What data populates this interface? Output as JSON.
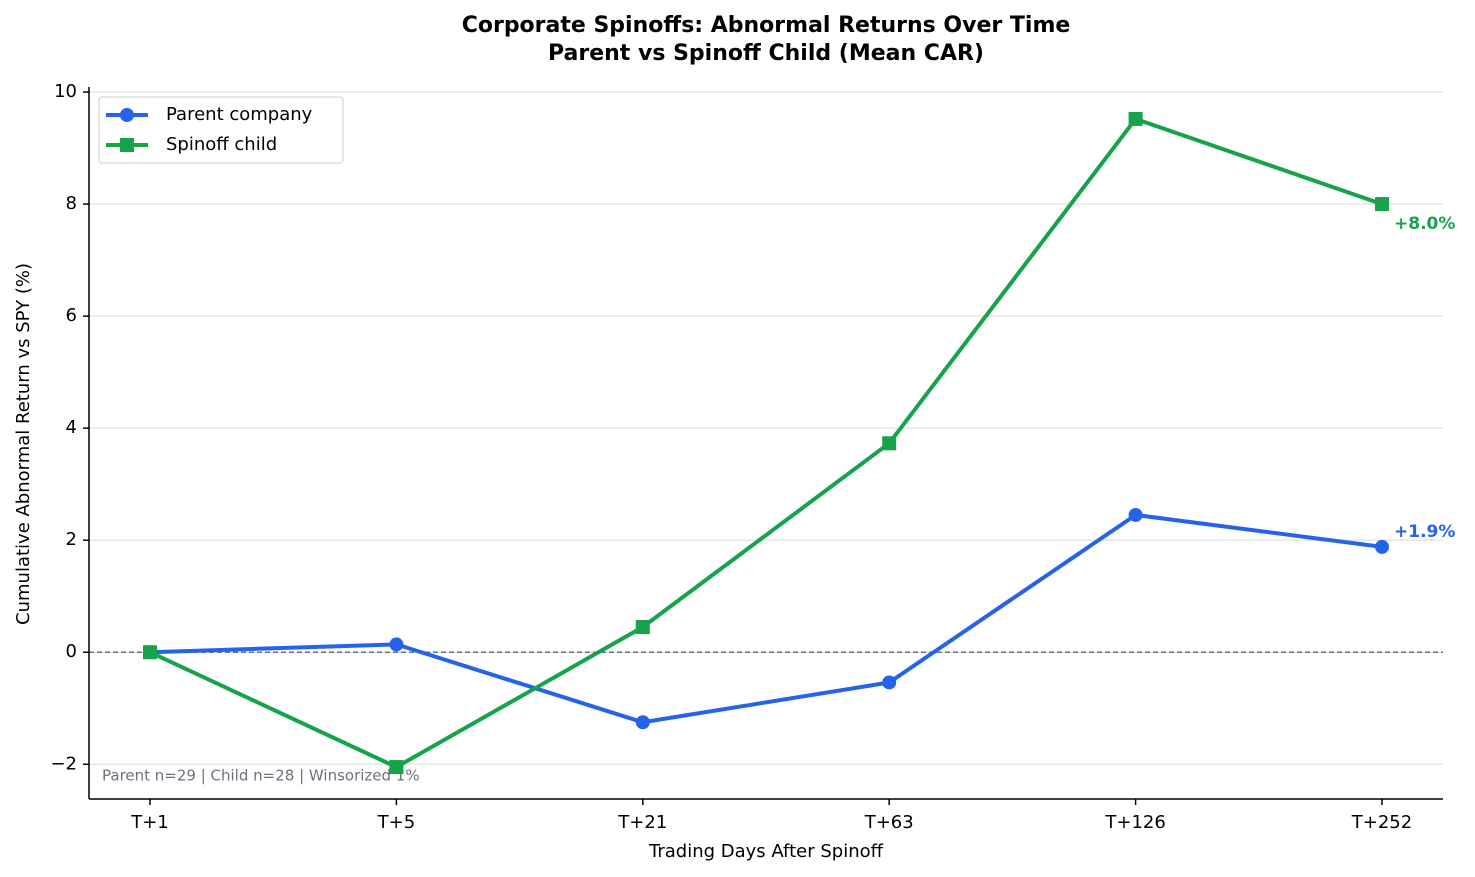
{
  "chart_data": {
    "type": "line",
    "title": "Corporate Spinoffs: Abnormal Returns Over Time",
    "subtitle": "Parent vs Spinoff Child (Mean CAR)",
    "x_label": "Trading Days After Spinoff",
    "y_label": "Cumulative Abnormal Return vs SPY (%)",
    "annotation": "Parent n=29  |  Child n=28  |  Winsorized 1%",
    "categories": [
      "T+1",
      "T+5",
      "T+21",
      "T+63",
      "T+126",
      "T+252"
    ],
    "series": [
      {
        "name": "Parent company",
        "color": "#2563eb",
        "marker": "circle",
        "values": [
          0,
          0.14,
          -1.25,
          -0.54,
          2.45,
          1.88
        ],
        "value_labels": [
          null,
          null,
          null,
          null,
          null,
          "+1.9%"
        ]
      },
      {
        "name": "Spinoff child",
        "color": "#16a34a",
        "marker": "square",
        "values": [
          0,
          -2.05,
          0.45,
          3.73,
          9.52,
          8.0
        ],
        "value_labels": [
          null,
          null,
          null,
          null,
          null,
          "+8.0%"
        ]
      }
    ],
    "ylim": [
      -2.62,
      10.09
    ],
    "yticks": [
      {
        "value": -2,
        "label": "−2"
      },
      0,
      2,
      4,
      6,
      8,
      10
    ],
    "grid": true,
    "reference_line": 0,
    "legend": "upper left"
  }
}
